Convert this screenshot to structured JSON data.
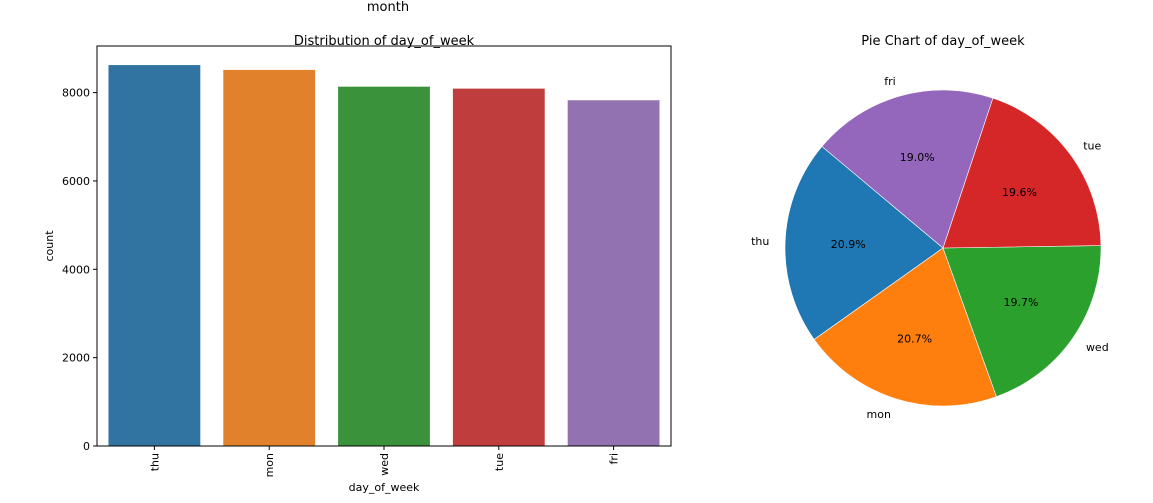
{
  "figure": {
    "suptitle": "month"
  },
  "chart_data": [
    {
      "type": "bar",
      "title": "Distribution of day_of_week",
      "xlabel": "day_of_week",
      "ylabel": "count",
      "categories": [
        "thu",
        "mon",
        "wed",
        "tue",
        "fri"
      ],
      "values": [
        8623,
        8514,
        8134,
        8090,
        7827
      ],
      "ylim": [
        0,
        9055
      ],
      "yticks": [
        0,
        2000,
        4000,
        6000,
        8000
      ],
      "colors": [
        "#3274a1",
        "#e1812c",
        "#3a923a",
        "#c03d3e",
        "#9372b2"
      ],
      "grid": false
    },
    {
      "type": "pie",
      "title": "Pie Chart of day_of_week",
      "labels": [
        "thu",
        "mon",
        "wed",
        "tue",
        "fri"
      ],
      "values": [
        8623,
        8514,
        8134,
        8090,
        7827
      ],
      "percent_labels": [
        "20.9%",
        "20.7%",
        "19.7%",
        "19.6%",
        "19.0%"
      ],
      "colors": [
        "#1f77b4",
        "#ff7f0e",
        "#2ca02c",
        "#d62728",
        "#9467bd"
      ],
      "start_angle_deg": 140,
      "direction": "counterclockwise"
    }
  ]
}
